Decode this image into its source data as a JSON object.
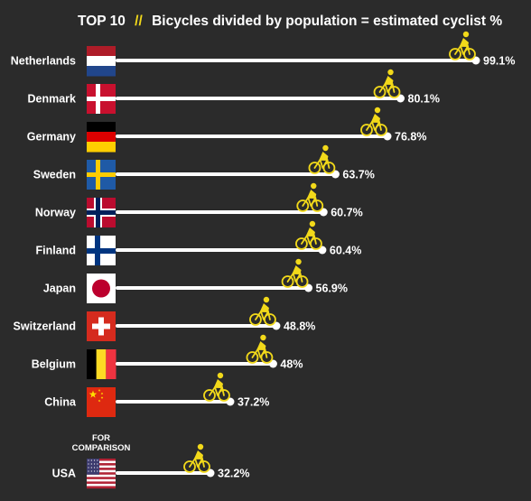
{
  "title": {
    "prefix": "TOP 10",
    "accent": "//",
    "text": "Bicycles divided by population = estimated cyclist %"
  },
  "comparison_note": [
    "FOR",
    "COMPARISON"
  ],
  "colors": {
    "background": "#2b2b2b",
    "bar": "#ffffff",
    "accent": "#f2d91a"
  },
  "chart_data": {
    "type": "bar",
    "orientation": "horizontal",
    "title": "TOP 10 // Bicycles divided by population = estimated cyclist %",
    "categories": [
      "Netherlands",
      "Denmark",
      "Germany",
      "Sweden",
      "Norway",
      "Finland",
      "Japan",
      "Switzerland",
      "Belgium",
      "China",
      "USA"
    ],
    "values": [
      99.1,
      80.1,
      76.8,
      63.7,
      60.7,
      60.4,
      56.9,
      48.8,
      48,
      37.2,
      32.2
    ],
    "value_labels": [
      "99.1%",
      "80.1%",
      "76.8%",
      "63.7%",
      "60.7%",
      "60.4%",
      "56.9%",
      "48.8%",
      "48%",
      "37.2%",
      "32.2%"
    ],
    "flags": [
      "netherlands-flag",
      "denmark-flag",
      "germany-flag",
      "sweden-flag",
      "norway-flag",
      "finland-flag",
      "japan-flag",
      "switzerland-flag",
      "belgium-flag",
      "china-flag",
      "usa-flag"
    ],
    "comparison_categories": [
      "USA"
    ],
    "marker_icon": "cyclist-icon",
    "xlim": [
      0,
      100
    ],
    "grid": false,
    "legend": "none"
  }
}
